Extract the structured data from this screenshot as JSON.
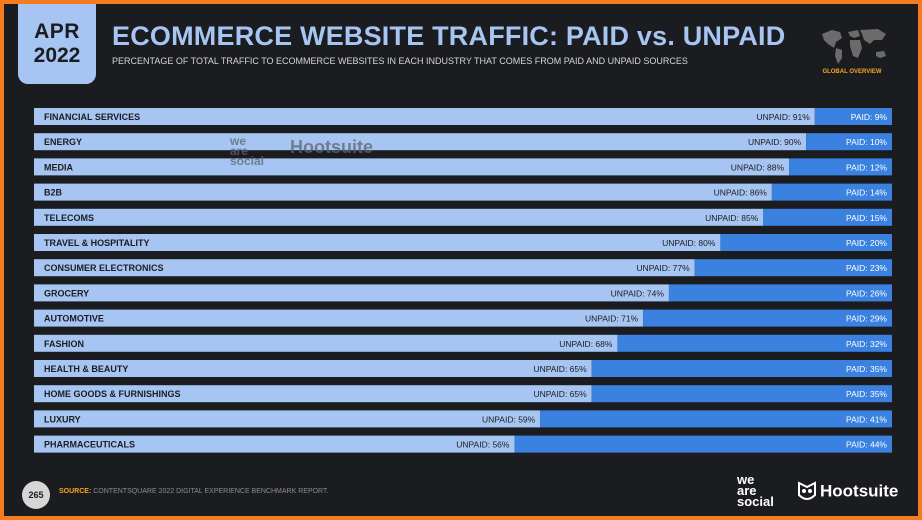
{
  "badge": {
    "month": "APR",
    "year": "2022"
  },
  "header": {
    "title": "ECOMMERCE WEBSITE TRAFFIC: PAID vs. UNPAID",
    "subtitle": "PERCENTAGE OF TOTAL TRAFFIC TO ECOMMERCE WEBSITES IN EACH INDUSTRY THAT COMES FROM PAID AND UNPAID SOURCES",
    "map_label": "GLOBAL OVERVIEW",
    "map_icon": "world-map-icon"
  },
  "chart_data": {
    "type": "bar",
    "orientation": "horizontal",
    "stacked": true,
    "categories": [
      "FINANCIAL SERVICES",
      "ENERGY",
      "MEDIA",
      "B2B",
      "TELECOMS",
      "TRAVEL & HOSPITALITY",
      "CONSUMER ELECTRONICS",
      "GROCERY",
      "AUTOMOTIVE",
      "FASHION",
      "HEALTH & BEAUTY",
      "HOME GOODS & FURNISHINGS",
      "LUXURY",
      "PHARMACEUTICALS"
    ],
    "series": [
      {
        "name": "UNPAID",
        "color": "#a6c5f2",
        "values": [
          91,
          90,
          88,
          86,
          85,
          80,
          77,
          74,
          71,
          68,
          65,
          65,
          59,
          56
        ]
      },
      {
        "name": "PAID",
        "color": "#3b82e0",
        "values": [
          9,
          10,
          12,
          14,
          15,
          20,
          23,
          26,
          29,
          32,
          35,
          35,
          41,
          44
        ]
      }
    ],
    "value_suffix": "%",
    "xlim": [
      0,
      100
    ]
  },
  "watermark": {
    "line1": "we",
    "line2": "are",
    "line3": "social",
    "brand": "Hootsuite"
  },
  "footer": {
    "page_number": "265",
    "source_label": "SOURCE:",
    "source_text": "CONTENTSQUARE 2022 DIGITAL EXPERIENCE BENCHMARK REPORT.",
    "brand1_line1": "we",
    "brand1_line2": "are",
    "brand1_line3": "social",
    "brand2": "Hootsuite",
    "brand2_icon": "owl-icon"
  },
  "colors": {
    "frame": "#f47b20",
    "background": "#1b1c1f",
    "title": "#a6c5f2",
    "accent": "#f6a623"
  }
}
